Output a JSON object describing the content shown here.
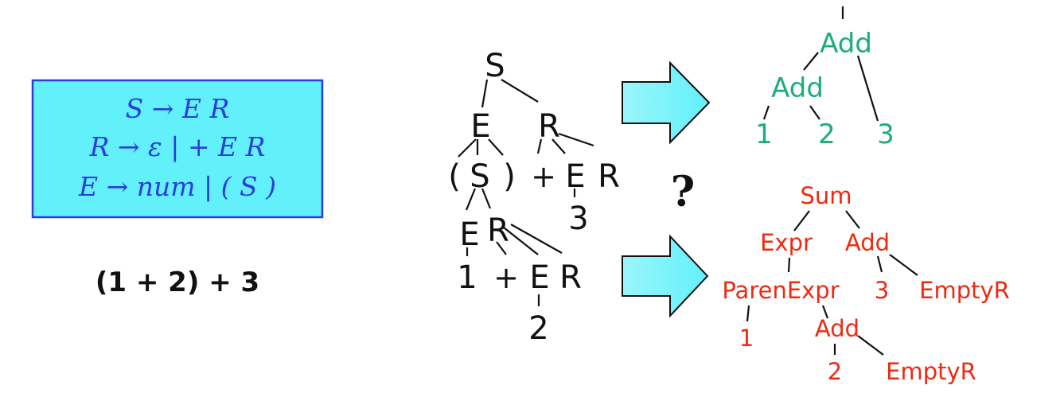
{
  "grammar": {
    "lines": [
      "S → E R",
      "R → ε | + E R",
      "E → num | ( S )"
    ],
    "box_fill": "#62f0fb",
    "border_color": "#2a3ed8",
    "text_color": "#2a3ed8"
  },
  "expression": "(1 + 2) + 3",
  "question_mark": "?",
  "parse_tree": {
    "labels": [
      "S",
      "E",
      "R",
      "(",
      "S",
      ")",
      "+",
      "E",
      "R",
      "3",
      "E",
      "R",
      "1",
      "+",
      "E",
      "R",
      "2"
    ]
  },
  "ast": {
    "color": "#1aae78",
    "labels": [
      "Add",
      "Add",
      "1",
      "2",
      "3"
    ]
  },
  "concrete_tree": {
    "color": "#ee2a12",
    "labels": [
      "Sum",
      "Expr",
      "Add",
      "ParenExpr",
      "3",
      "EmptyR",
      "1",
      "Add",
      "2",
      "EmptyR"
    ]
  },
  "arrows": {
    "fill": "#62f0fb",
    "count": 2
  }
}
